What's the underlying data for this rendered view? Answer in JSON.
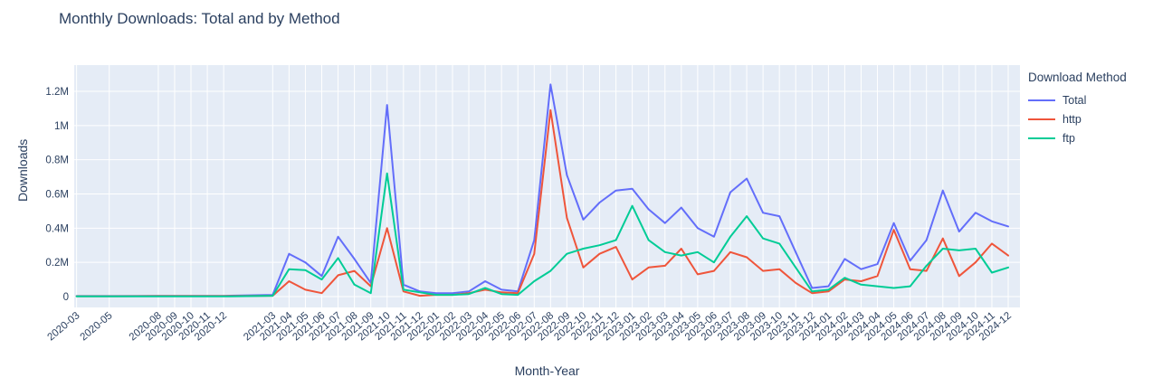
{
  "title": "Monthly Downloads: Total and by Method",
  "colors": {
    "text": "#2a3f5f",
    "plot_bg": "#e5ecf6",
    "grid": "#ffffff"
  },
  "chart_data": {
    "type": "line",
    "title": "Monthly Downloads: Total and by Method",
    "xlabel": "Month-Year",
    "ylabel": "Downloads",
    "legend_title": "Download Method",
    "legend_position": "right",
    "grid": true,
    "ylim_millions": [
      -0.065,
      1.35
    ],
    "yticks": [
      {
        "value": 0,
        "label": "0"
      },
      {
        "value": 0.2,
        "label": "0.2M"
      },
      {
        "value": 0.4,
        "label": "0.4M"
      },
      {
        "value": 0.6,
        "label": "0.6M"
      },
      {
        "value": 0.8,
        "label": "0.8M"
      },
      {
        "value": 1.0,
        "label": "1M"
      },
      {
        "value": 1.2,
        "label": "1.2M"
      }
    ],
    "categories": [
      "2020-03",
      "2020-05",
      "2020-08",
      "2020-09",
      "2020-10",
      "2020-11",
      "2020-12",
      "2021-03",
      "2021-04",
      "2021-05",
      "2021-06",
      "2021-07",
      "2021-08",
      "2021-09",
      "2021-10",
      "2021-11",
      "2021-12",
      "2022-01",
      "2022-02",
      "2022-03",
      "2022-04",
      "2022-05",
      "2022-06",
      "2022-07",
      "2022-08",
      "2022-09",
      "2022-10",
      "2022-11",
      "2022-12",
      "2023-01",
      "2023-02",
      "2023-03",
      "2023-04",
      "2023-05",
      "2023-06",
      "2023-07",
      "2023-08",
      "2023-09",
      "2023-10",
      "2023-11",
      "2023-12",
      "2024-01",
      "2024-02",
      "2024-03",
      "2024-04",
      "2024-05",
      "2024-06",
      "2024-07",
      "2024-08",
      "2024-09",
      "2024-10",
      "2024-11",
      "2024-12"
    ],
    "values_unit": "millions",
    "series": [
      {
        "name": "Total",
        "color": "#636efa",
        "values": [
          0.003,
          0.003,
          0.004,
          0.004,
          0.004,
          0.004,
          0.004,
          0.01,
          0.25,
          0.2,
          0.12,
          0.35,
          0.22,
          0.08,
          1.12,
          0.07,
          0.03,
          0.02,
          0.02,
          0.03,
          0.09,
          0.04,
          0.03,
          0.33,
          1.24,
          0.71,
          0.45,
          0.55,
          0.62,
          0.63,
          0.51,
          0.43,
          0.52,
          0.4,
          0.35,
          0.61,
          0.69,
          0.49,
          0.47,
          0.26,
          0.05,
          0.06,
          0.22,
          0.16,
          0.19,
          0.43,
          0.21,
          0.33,
          0.62,
          0.38,
          0.49,
          0.44,
          0.41
        ]
      },
      {
        "name": "http",
        "color": "#ef553b",
        "values": [
          0.002,
          0.002,
          0.003,
          0.003,
          0.003,
          0.003,
          0.003,
          0.005,
          0.09,
          0.04,
          0.02,
          0.125,
          0.15,
          0.06,
          0.4,
          0.03,
          0.005,
          0.01,
          0.01,
          0.02,
          0.04,
          0.025,
          0.02,
          0.25,
          1.09,
          0.46,
          0.17,
          0.25,
          0.29,
          0.1,
          0.17,
          0.18,
          0.28,
          0.13,
          0.15,
          0.26,
          0.23,
          0.15,
          0.16,
          0.08,
          0.02,
          0.03,
          0.1,
          0.09,
          0.12,
          0.39,
          0.16,
          0.15,
          0.34,
          0.12,
          0.2,
          0.31,
          0.24
        ]
      },
      {
        "name": "ftp",
        "color": "#00cc96",
        "values": [
          0.001,
          0.001,
          0.001,
          0.001,
          0.001,
          0.001,
          0.001,
          0.005,
          0.16,
          0.155,
          0.1,
          0.225,
          0.07,
          0.02,
          0.72,
          0.04,
          0.025,
          0.01,
          0.01,
          0.015,
          0.05,
          0.015,
          0.01,
          0.09,
          0.15,
          0.25,
          0.28,
          0.3,
          0.33,
          0.53,
          0.33,
          0.26,
          0.24,
          0.26,
          0.2,
          0.35,
          0.47,
          0.34,
          0.31,
          0.17,
          0.03,
          0.04,
          0.11,
          0.07,
          0.06,
          0.05,
          0.06,
          0.18,
          0.28,
          0.27,
          0.28,
          0.14,
          0.17
        ]
      }
    ]
  }
}
